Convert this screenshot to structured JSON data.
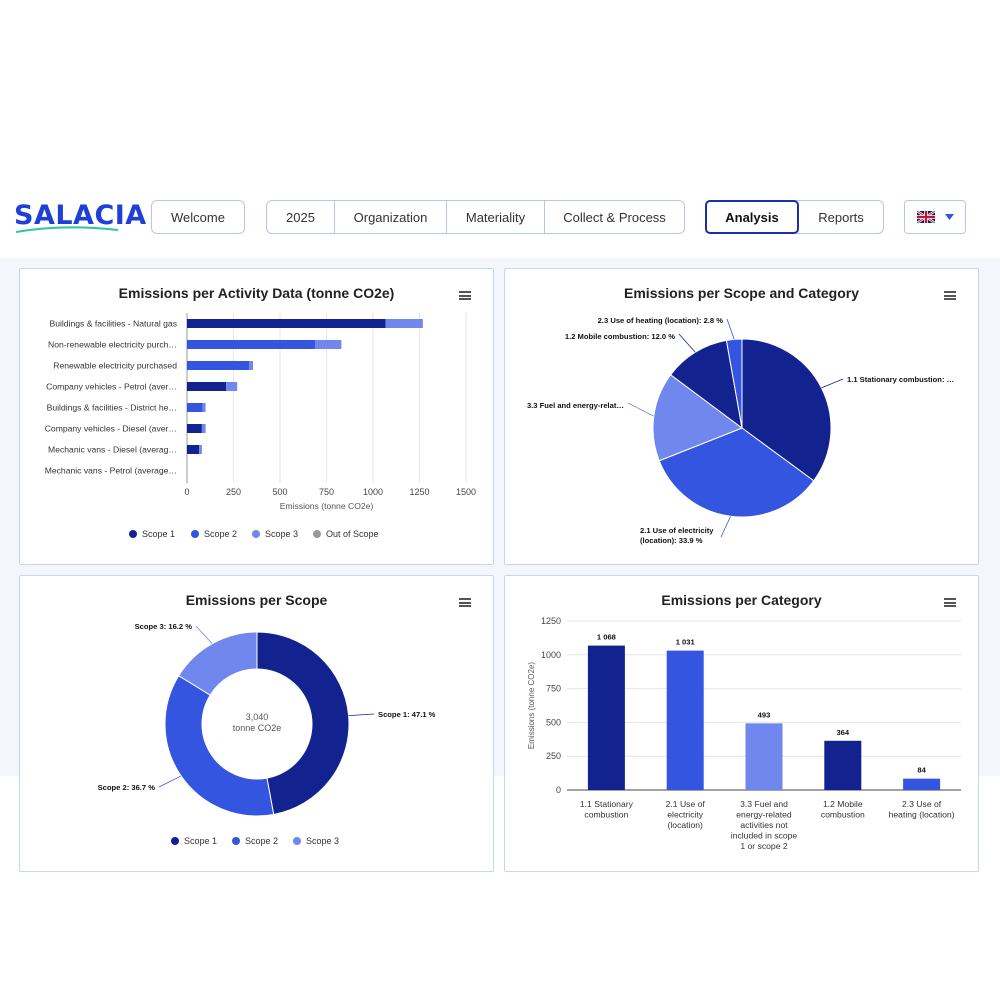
{
  "brand": {
    "logo_text": "SALACIA",
    "accent": "#1f3fd6"
  },
  "nav": {
    "welcome": "Welcome",
    "group1": [
      "2025",
      "Organization",
      "Materiality",
      "Collect & Process"
    ],
    "group2": [
      "Analysis",
      "Reports"
    ],
    "active": "Analysis",
    "language_icon": "uk-flag-icon"
  },
  "colors": {
    "scope1": "#12238f",
    "scope2": "#3355e0",
    "scope3": "#7088ee",
    "out_of_scope": "#999999"
  },
  "charts": {
    "activity": {
      "title": "Emissions per Activity Data (tonne CO2e)",
      "chart_data": {
        "type": "bar",
        "orientation": "horizontal",
        "stacked": true,
        "categories": [
          "Buildings & facilities - Natural gas",
          "Non-renewable electricity purch…",
          "Renewable electricity purchased",
          "Company vehicles - Petrol (aver…",
          "Buildings & facilities - District he…",
          "Company vehicles - Diesel (aver…",
          "Mechanic vans - Diesel (averag…",
          "Mechanic vans - Petrol (average…"
        ],
        "series": [
          {
            "name": "Scope 1",
            "values": [
              1068,
              0,
              0,
              210,
              0,
              80,
              65,
              0
            ]
          },
          {
            "name": "Scope 2",
            "values": [
              0,
              690,
              335,
              0,
              84,
              0,
              0,
              0
            ]
          },
          {
            "name": "Scope 3",
            "values": [
              200,
              140,
              20,
              60,
              16,
              20,
              15,
              0
            ]
          },
          {
            "name": "Out of Scope",
            "values": [
              0,
              0,
              0,
              0,
              0,
              0,
              0,
              0
            ]
          }
        ],
        "xlabel": "Emissions (tonne CO2e)",
        "xlim": [
          0,
          1500
        ],
        "xticks": [
          "0",
          "250",
          "500",
          "750",
          "1000",
          "1250",
          "1500"
        ],
        "legend": "bottom"
      }
    },
    "scope_category": {
      "title": "Emissions per Scope and Category",
      "chart_data": {
        "type": "pie",
        "slices": [
          {
            "label": "1.1 Stationary combustion: …",
            "value": 35.1
          },
          {
            "label": "2.1 Use of electricity (location): 33.9 %",
            "value": 33.9
          },
          {
            "label": "3.3 Fuel and energy-relat…",
            "value": 16.2
          },
          {
            "label": "1.2 Mobile combustion: 12.0 %",
            "value": 12.0
          },
          {
            "label": "2.3 Use of heating (location): 2.8 %",
            "value": 2.8
          }
        ]
      }
    },
    "per_scope": {
      "title": "Emissions per Scope",
      "center_value": "3,040",
      "center_unit": "tonne CO2e",
      "chart_data": {
        "type": "pie",
        "donut": true,
        "slices": [
          {
            "name": "Scope 1",
            "label": "Scope 1: 47.1 %",
            "value": 47.1
          },
          {
            "name": "Scope 2",
            "label": "Scope 2: 36.7 %",
            "value": 36.7
          },
          {
            "name": "Scope 3",
            "label": "Scope 3: 16.2 %",
            "value": 16.2
          }
        ],
        "legend": "bottom"
      }
    },
    "per_category": {
      "title": "Emissions per Category",
      "chart_data": {
        "type": "bar",
        "categories": [
          "1.1 Stationary combustion",
          "2.1 Use of electricity (location)",
          "3.3 Fuel and energy-related activities not included in scope 1 or scope 2",
          "1.2 Mobile combustion",
          "2.3 Use of heating (location)"
        ],
        "category_lines": [
          [
            "1.1 Stationary",
            "combustion"
          ],
          [
            "2.1 Use of",
            "electricity",
            "(location)"
          ],
          [
            "3.3 Fuel and",
            "energy-related",
            "activities not",
            "included in scope",
            "1 or scope 2"
          ],
          [
            "1.2 Mobile",
            "combustion"
          ],
          [
            "2.3 Use of",
            "heating (location)"
          ]
        ],
        "values": [
          1068,
          1031,
          493,
          364,
          84
        ],
        "value_labels": [
          "1 068",
          "1 031",
          "493",
          "364",
          "84"
        ],
        "bar_scopes": [
          1,
          2,
          3,
          1,
          2
        ],
        "ylabel": "Emissions (tonne CO2e)",
        "ylim": [
          0,
          1250
        ],
        "yticks": [
          "0",
          "250",
          "500",
          "750",
          "1000",
          "1250"
        ]
      }
    }
  }
}
